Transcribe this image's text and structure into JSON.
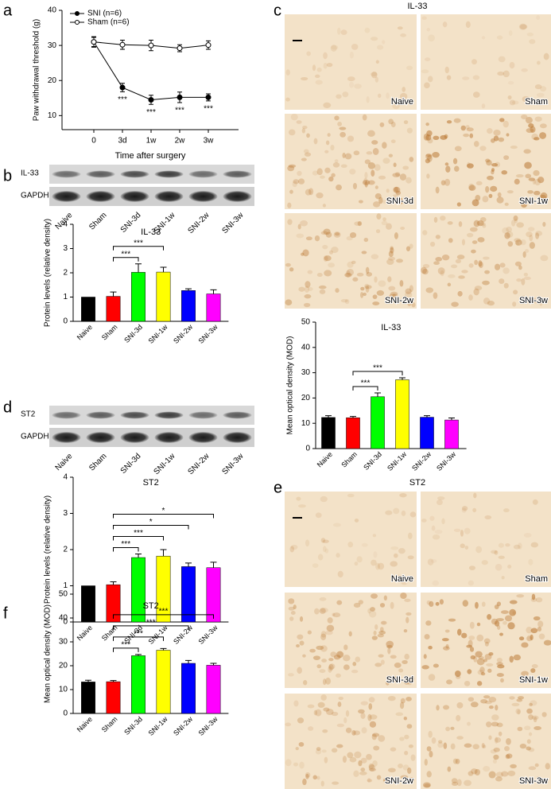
{
  "panels": [
    "a",
    "b",
    "c",
    "d",
    "e",
    "f"
  ],
  "blots": [
    {
      "rows": [
        "IL-33",
        "GAPDH"
      ],
      "lanes": [
        "Naive",
        "Sham",
        "SNI-3d",
        "SNI-1w",
        "SNI-2w",
        "SNI-3w"
      ]
    },
    {
      "rows": [
        "ST2",
        "GAPDH"
      ],
      "lanes": [
        "Naive",
        "Sham",
        "SNI-3d",
        "SNI-1w",
        "SNI-2w",
        "SNI-3w"
      ]
    }
  ],
  "micrographs": [
    {
      "title": "IL-33",
      "labels": [
        "Naive",
        "Sham",
        "SNI-3d",
        "SNI-1w",
        "SNI-2w",
        "SNI-3w"
      ]
    },
    {
      "title": "ST2",
      "labels": [
        "Naive",
        "Sham",
        "SNI-3d",
        "SNI-1w",
        "SNI-2w",
        "SNI-3w"
      ]
    }
  ],
  "chart_data": [
    {
      "type": "line",
      "ylabel": "Paw withdrawal threshold (g)",
      "xlabel": "Time after surgery",
      "categories": [
        "0",
        "3d",
        "1w",
        "2w",
        "3w"
      ],
      "ylim": [
        6,
        40
      ],
      "yticks": [
        10,
        20,
        30,
        40
      ],
      "legend": "upper left",
      "series": [
        {
          "name": "SNI (n=6)",
          "color": "#000000",
          "fill": "#000000",
          "values": [
            31,
            18,
            14.5,
            15.2,
            15.2
          ],
          "errors": [
            1.5,
            1.2,
            1.3,
            1.5,
            1
          ],
          "annotations": [
            null,
            "***",
            "***",
            "***",
            "***"
          ]
        },
        {
          "name": "Sham (n=6)",
          "color": "#000000",
          "fill": "#ffffff",
          "values": [
            31,
            30.2,
            30,
            29.2,
            30.1
          ],
          "errors": [
            1.3,
            1.3,
            1.5,
            1,
            1.2
          ]
        }
      ]
    },
    {
      "type": "bar",
      "title": "IL-33",
      "ylabel": "Protein levels (relative density)",
      "categories": [
        "Naive",
        "Sham",
        "SNI-3d",
        "SNI-1w",
        "SNI-2w",
        "SNI-3w"
      ],
      "values": [
        1,
        1.03,
        2.02,
        2.03,
        1.27,
        1.13
      ],
      "errors": [
        0,
        0.18,
        0.35,
        0.2,
        0.07,
        0.17
      ],
      "colors": [
        "#000000",
        "#ff0000",
        "#00ff00",
        "#ffff00",
        "#0000ff",
        "#ff00ff"
      ],
      "significance": [
        null,
        null,
        "***",
        "***",
        null,
        null
      ],
      "ylim": [
        0,
        4
      ],
      "yticks": [
        0,
        1,
        2,
        3,
        4
      ]
    },
    {
      "type": "bar",
      "title": "IL-33",
      "ylabel": "Mean optical density (MOD)",
      "categories": [
        "Naive",
        "Sham",
        "SNI-3d",
        "SNI-1w",
        "SNI-2w",
        "SNI-3w"
      ],
      "values": [
        12.3,
        12.2,
        20.5,
        27.2,
        12.4,
        11.3
      ],
      "errors": [
        0.7,
        0.5,
        1.5,
        0.8,
        0.6,
        0.8
      ],
      "colors": [
        "#000000",
        "#ff0000",
        "#00ff00",
        "#ffff00",
        "#0000ff",
        "#ff00ff"
      ],
      "significance": [
        null,
        null,
        "***",
        "***",
        null,
        null
      ],
      "ylim": [
        0,
        50
      ],
      "yticks": [
        0,
        10,
        20,
        30,
        40,
        50
      ]
    },
    {
      "type": "bar",
      "title": "ST2",
      "ylabel": "Protein levels (relative density)",
      "categories": [
        "Naive",
        "Sham",
        "SNI-3d",
        "SNI-1w",
        "SNI-2w",
        "SNI-3w"
      ],
      "values": [
        1,
        1.03,
        1.78,
        1.82,
        1.53,
        1.5
      ],
      "errors": [
        0,
        0.08,
        0.1,
        0.18,
        0.1,
        0.15
      ],
      "colors": [
        "#000000",
        "#ff0000",
        "#00ff00",
        "#ffff00",
        "#0000ff",
        "#ff00ff"
      ],
      "significance": [
        null,
        null,
        "***",
        "***",
        "*",
        "*"
      ],
      "ylim": [
        0,
        4
      ],
      "yticks": [
        0,
        1,
        2,
        3,
        4
      ]
    },
    {
      "type": "bar",
      "title": "ST2",
      "ylabel": "Mean optical density (MOD)",
      "categories": [
        "Naive",
        "Sham",
        "SNI-3d",
        "SNI-1w",
        "SNI-2w",
        "SNI-3w"
      ],
      "values": [
        13.2,
        13.3,
        24.2,
        26.5,
        21,
        20.2
      ],
      "errors": [
        0.7,
        0.5,
        0.5,
        0.7,
        1.2,
        0.8
      ],
      "colors": [
        "#000000",
        "#ff0000",
        "#00ff00",
        "#ffff00",
        "#0000ff",
        "#ff00ff"
      ],
      "significance": [
        null,
        null,
        "***",
        "***",
        "***",
        "***"
      ],
      "ylim": [
        0,
        50
      ],
      "yticks": [
        0,
        10,
        20,
        30,
        40,
        50
      ]
    }
  ]
}
